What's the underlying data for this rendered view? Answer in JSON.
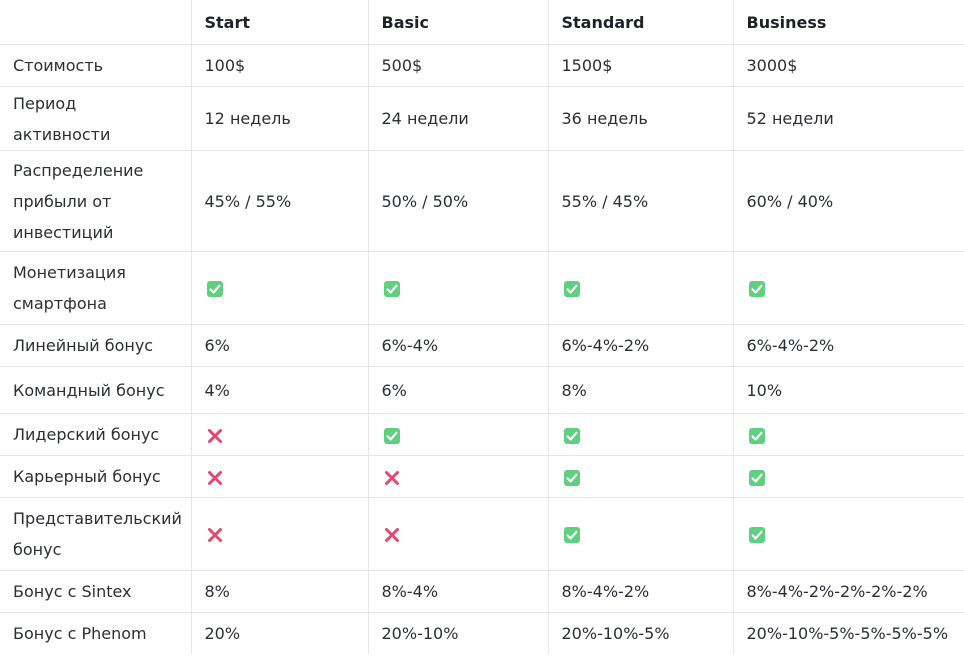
{
  "colors": {
    "check_bg": "#5fcf80",
    "cross": "#e5476f",
    "border": "#e4e7ea"
  },
  "icons": {
    "yes": "check-mark-icon",
    "no": "cross-mark-icon"
  },
  "header": [
    "",
    "Start",
    "Basic",
    "Standard",
    "Business"
  ],
  "rows": [
    {
      "label": "Стоимость",
      "cells": [
        "100$",
        "500$",
        "1500$",
        "3000$"
      ]
    },
    {
      "label": "Период активности",
      "cells": [
        "12 недель",
        "24 недели",
        "36 недель",
        "52 недели"
      ]
    },
    {
      "label": "Распределение прибыли от инвестиций",
      "cells": [
        "45% / 55%",
        "50% / 50%",
        "55% / 45%",
        "60% / 40%"
      ]
    },
    {
      "label": "Монетизация смартфона",
      "cells": [
        true,
        true,
        true,
        true
      ]
    },
    {
      "label": "Линейный бонус",
      "cells": [
        "6%",
        "6%-4%",
        "6%-4%-2%",
        "6%-4%-2%"
      ]
    },
    {
      "label": "Командный бонус",
      "cells": [
        "4%",
        "6%",
        "8%",
        "10%"
      ]
    },
    {
      "label": "Лидерский бонус",
      "cells": [
        false,
        true,
        true,
        true
      ]
    },
    {
      "label": "Карьерный бонус",
      "cells": [
        false,
        false,
        true,
        true
      ]
    },
    {
      "label": "Представительский бонус",
      "cells": [
        false,
        false,
        true,
        true
      ]
    },
    {
      "label": "Бонус с Sintex",
      "cells": [
        "8%",
        "8%-4%",
        "8%-4%-2%",
        "8%-4%-2%-2%-2%-2%"
      ]
    },
    {
      "label": "Бонус с Phenom",
      "cells": [
        "20%",
        "20%-10%",
        "20%-10%-5%",
        "20%-10%-5%-5%-5%-5%"
      ]
    }
  ]
}
